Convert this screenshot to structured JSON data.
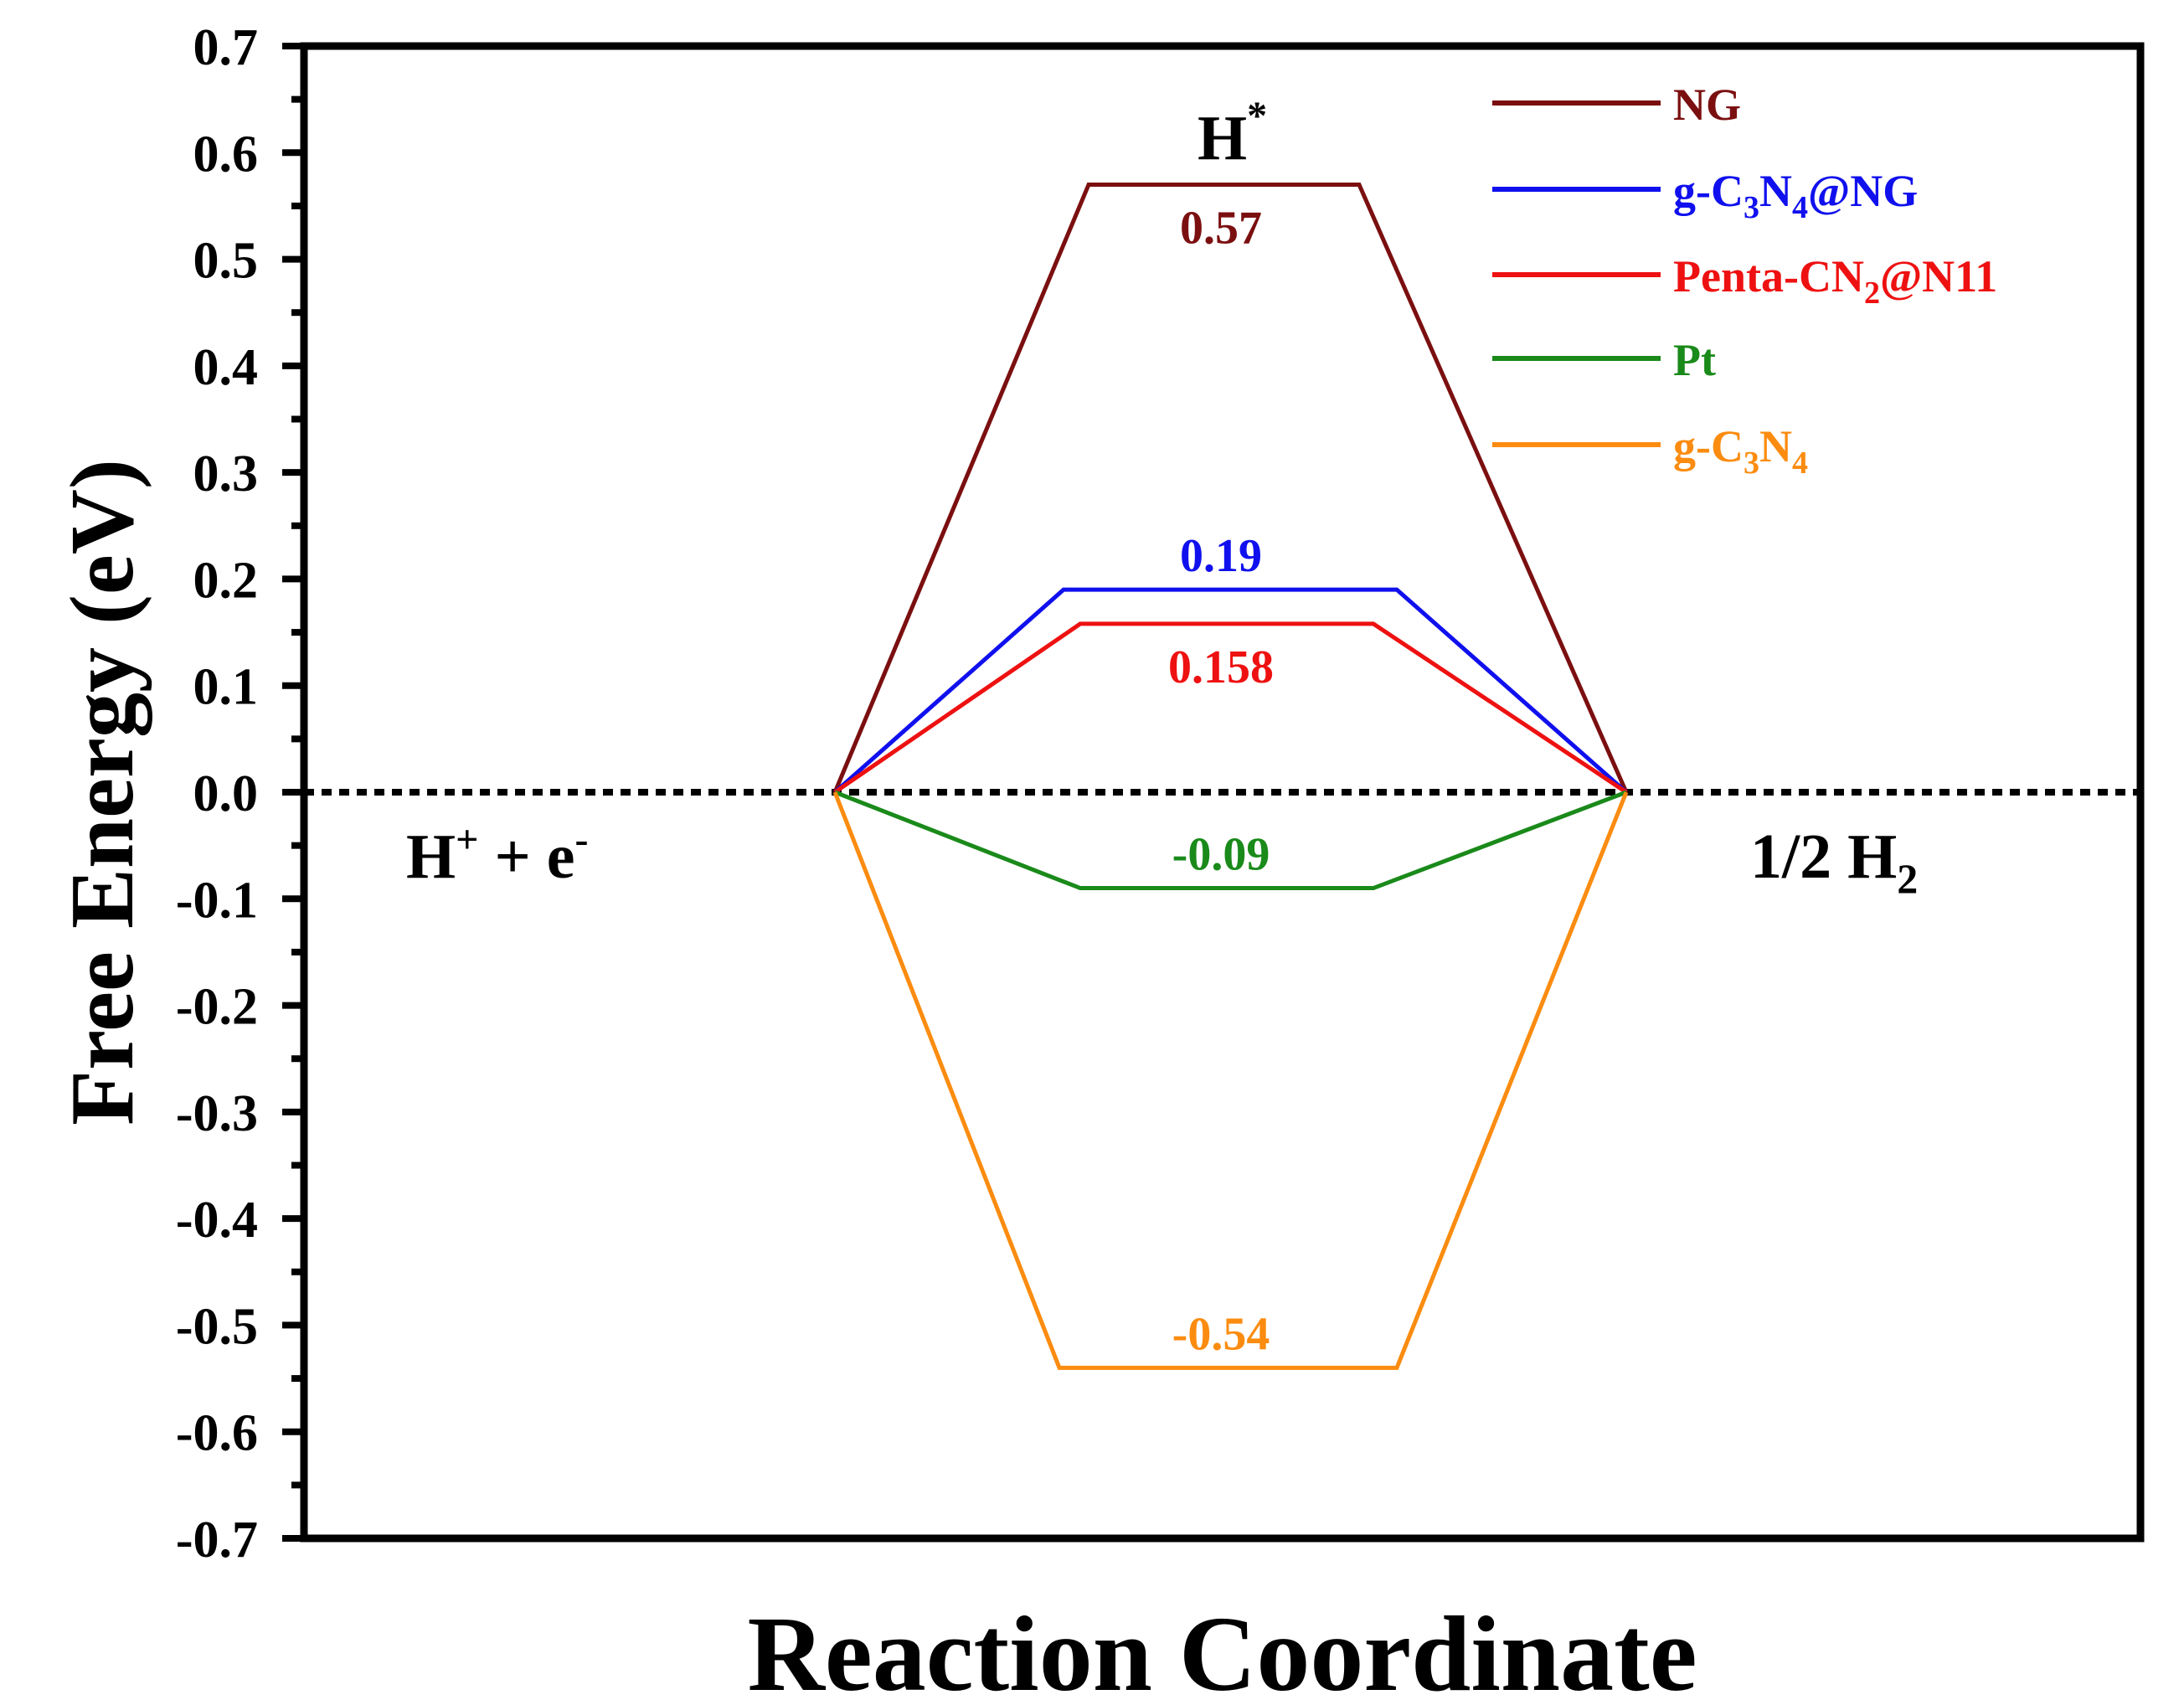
{
  "chart_data": {
    "type": "line",
    "xlabel": "Reaction Coordinate",
    "ylabel": "Free Energy (eV)",
    "ylim": [
      -0.7,
      0.7
    ],
    "yticks": [
      "0.7",
      "0.6",
      "0.5",
      "0.4",
      "0.3",
      "0.2",
      "0.1",
      "0.0",
      "-0.1",
      "-0.2",
      "-0.3",
      "-0.4",
      "-0.5",
      "-0.6",
      "-0.7"
    ],
    "ytick_values": [
      0.7,
      0.6,
      0.5,
      0.4,
      0.3,
      0.2,
      0.1,
      0.0,
      -0.1,
      -0.2,
      -0.3,
      -0.4,
      -0.5,
      -0.6,
      -0.7
    ],
    "grid": false,
    "legend_position": "top-right",
    "reference_line": {
      "y": 0.0,
      "style": "dotted"
    },
    "states": {
      "initial": {
        "main": "H",
        "sup": "+",
        "tail": " + e",
        "tail_sup": "-"
      },
      "intermediate": {
        "main": "H",
        "sup": "*"
      },
      "final": {
        "main": "1/2 H",
        "sub": "2"
      }
    },
    "series": [
      {
        "name": "NG",
        "legend": [
          {
            "t": "NG"
          }
        ],
        "color": "#7b0f10",
        "values": [
          0,
          0.57,
          0
        ],
        "label": "0.57",
        "label_pos": "below"
      },
      {
        "name": "g-C3N4@NG",
        "legend": [
          {
            "t": "g-C"
          },
          {
            "t": "3",
            "sub": true
          },
          {
            "t": "N"
          },
          {
            "t": "4",
            "sub": true
          },
          {
            "t": "@NG"
          }
        ],
        "color": "#1010ee",
        "values": [
          0,
          0.19,
          0
        ],
        "label": "0.19",
        "label_pos": "above"
      },
      {
        "name": "Penta-CN2@N11",
        "legend": [
          {
            "t": "Penta-CN"
          },
          {
            "t": "2",
            "sub": true
          },
          {
            "t": "@N11"
          }
        ],
        "color": "#ee1111",
        "values": [
          0,
          0.158,
          0
        ],
        "label": "0.158",
        "label_pos": "below"
      },
      {
        "name": "Pt",
        "legend": [
          {
            "t": "Pt"
          }
        ],
        "color": "#1a8a1a",
        "values": [
          0,
          -0.09,
          0
        ],
        "label": "-0.09",
        "label_pos": "above"
      },
      {
        "name": "g-C3N4",
        "legend": [
          {
            "t": "g-C"
          },
          {
            "t": "3",
            "sub": true
          },
          {
            "t": "N"
          },
          {
            "t": "4",
            "sub": true
          }
        ],
        "color": "#fb8c10",
        "values": [
          0,
          -0.54,
          0
        ],
        "label": "-0.54",
        "label_pos": "above"
      }
    ]
  }
}
